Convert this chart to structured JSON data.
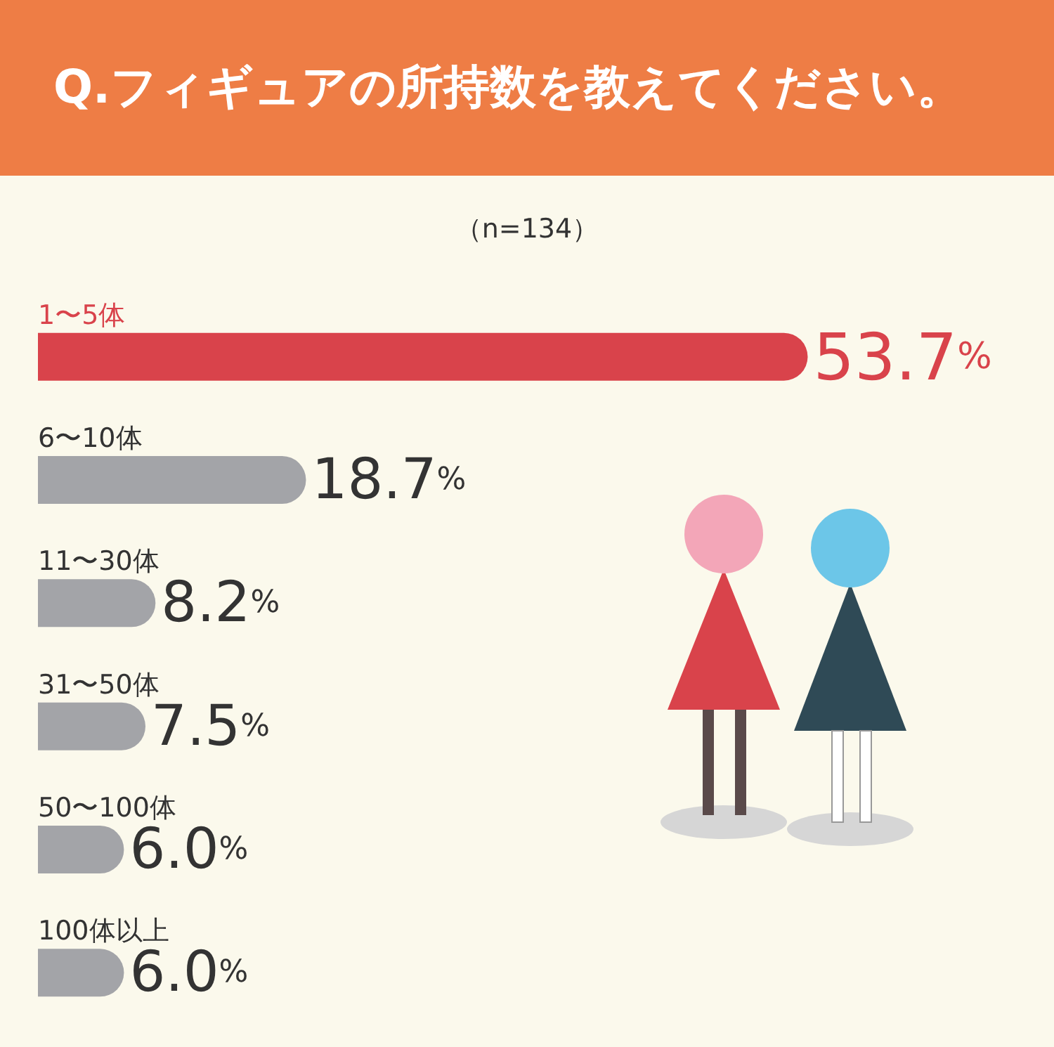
{
  "chart_data": {
    "type": "bar",
    "orientation": "horizontal",
    "title": "Q.フィギュアの所持数を教えてください。",
    "subtitle": "（n=134）",
    "categories": [
      "1〜5体",
      "6〜10体",
      "11〜30体",
      "31〜50体",
      "50〜100体",
      "100体以上"
    ],
    "values": [
      53.7,
      18.7,
      8.2,
      7.5,
      6.0,
      6.0
    ],
    "colors": [
      "#d9434b",
      "#a3a4a8",
      "#a3a4a8",
      "#a3a4a8",
      "#a3a4a8",
      "#a3a4a8"
    ],
    "value_labels": [
      "53.7%",
      "18.7%",
      "8.2%",
      "7.5%",
      "6.0%",
      "6.0%"
    ]
  }
}
